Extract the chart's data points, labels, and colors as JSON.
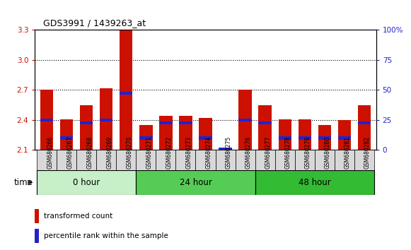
{
  "title": "GDS3991 / 1439263_at",
  "samples": [
    "GSM680266",
    "GSM680267",
    "GSM680268",
    "GSM680269",
    "GSM680270",
    "GSM680271",
    "GSM680272",
    "GSM680273",
    "GSM680274",
    "GSM680275",
    "GSM680276",
    "GSM680277",
    "GSM680278",
    "GSM680279",
    "GSM680280",
    "GSM680281",
    "GSM680282"
  ],
  "red_values": [
    2.7,
    2.41,
    2.55,
    2.72,
    3.3,
    2.35,
    2.44,
    2.44,
    2.42,
    2.11,
    2.7,
    2.55,
    2.41,
    2.41,
    2.35,
    2.4,
    2.55
  ],
  "blue_values": [
    2.4,
    2.22,
    2.37,
    2.4,
    2.67,
    2.22,
    2.37,
    2.37,
    2.22,
    2.11,
    2.4,
    2.37,
    2.22,
    2.22,
    2.22,
    2.22,
    2.37
  ],
  "ymin": 2.1,
  "ymax": 3.3,
  "yticks_left": [
    2.1,
    2.4,
    2.7,
    3.0,
    3.3
  ],
  "yticks_right": [
    0,
    25,
    50,
    75,
    100
  ],
  "yticks_right_labels": [
    "0",
    "25",
    "50",
    "75",
    "100%"
  ],
  "groups": [
    {
      "label": "0 hour",
      "start": 0,
      "end": 5,
      "color": "#c8f0c8"
    },
    {
      "label": "24 hour",
      "start": 5,
      "end": 11,
      "color": "#55cc55"
    },
    {
      "label": "48 hour",
      "start": 11,
      "end": 17,
      "color": "#33bb33"
    }
  ],
  "time_label": "time",
  "legend_red": "transformed count",
  "legend_blue": "percentile rank within the sample",
  "bar_color_red": "#cc1100",
  "bar_color_blue": "#2222cc",
  "bar_width": 0.65,
  "background_color": "#ffffff",
  "plot_bg_color": "#ffffff",
  "tick_color_left": "#cc1100",
  "tick_color_right": "#2222cc",
  "grid_color": "black",
  "grid_lines": [
    2.4,
    2.7,
    3.0
  ]
}
